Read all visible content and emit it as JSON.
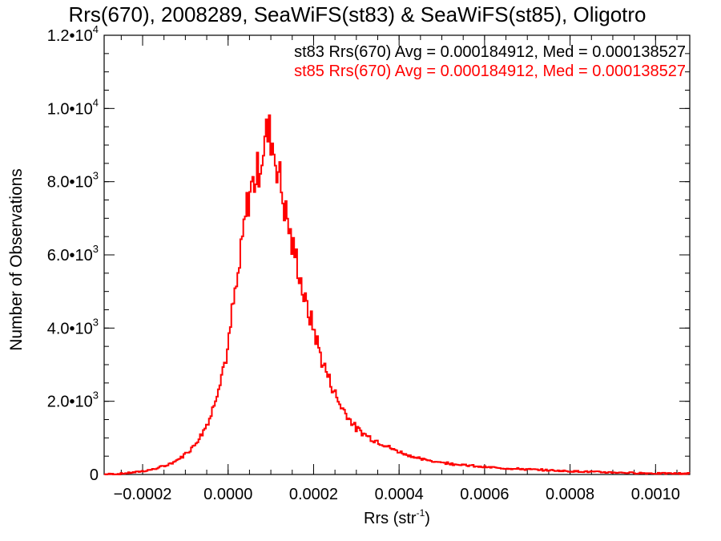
{
  "chart_data": {
    "type": "line",
    "title": "Rrs(670), 2008289, SeaWiFS(st83) & SeaWiFS(st85), Oligotro",
    "xlabel_main": "Rrs (str",
    "xlabel_sup": "-1",
    "xlabel_close": ")",
    "ylabel": "Number of Observations",
    "xlim": [
      -0.00029,
      0.00108
    ],
    "ylim": [
      0,
      12000
    ],
    "x_ticks": [
      {
        "value": -0.0002,
        "label": "−0.0002"
      },
      {
        "value": 0.0,
        "label": "0.0000"
      },
      {
        "value": 0.0002,
        "label": "0.0002"
      },
      {
        "value": 0.0004,
        "label": "0.0004"
      },
      {
        "value": 0.0006,
        "label": "0.0006"
      },
      {
        "value": 0.0008,
        "label": "0.0008"
      },
      {
        "value": 0.001,
        "label": "0.0010"
      }
    ],
    "y_ticks": [
      {
        "value": 0,
        "mant": "0",
        "exp": ""
      },
      {
        "value": 2000,
        "mant": "2.0•10",
        "exp": "3"
      },
      {
        "value": 4000,
        "mant": "4.0•10",
        "exp": "3"
      },
      {
        "value": 6000,
        "mant": "6.0•10",
        "exp": "3"
      },
      {
        "value": 8000,
        "mant": "8.0•10",
        "exp": "3"
      },
      {
        "value": 10000,
        "mant": "1.0•10",
        "exp": "4"
      },
      {
        "value": 12000,
        "mant": "1.2•10",
        "exp": "4"
      }
    ],
    "annotations": [
      {
        "text": "st83 Rrs(670) Avg = 0.000184912, Med = 0.000138527",
        "color": "#000000"
      },
      {
        "text": "st85 Rrs(670) Avg = 0.000184912, Med = 0.000138527",
        "color": "#ff0000"
      }
    ],
    "series": [
      {
        "color": "#ff0000",
        "x": [
          -0.00029,
          -0.00025,
          -0.00022,
          -0.0002,
          -0.00018,
          -0.00016,
          -0.00014,
          -0.00012,
          -0.0001,
          -8e-05,
          -6e-05,
          -4e-05,
          -2e-05,
          0.0,
          1e-05,
          2e-05,
          3e-05,
          4e-05,
          5e-05,
          6e-05,
          7e-05,
          8e-05,
          9e-05,
          0.0001,
          0.00011,
          0.00012,
          0.00013,
          0.00014,
          0.00015,
          0.00016,
          0.00018,
          0.0002,
          0.00022,
          0.00024,
          0.00026,
          0.00028,
          0.0003,
          0.00032,
          0.00034,
          0.00036,
          0.00038,
          0.0004,
          0.00045,
          0.0005,
          0.00055,
          0.0006,
          0.0007,
          0.0008,
          0.0009,
          0.001,
          0.00108
        ],
        "y": [
          5,
          20,
          60,
          90,
          130,
          190,
          270,
          380,
          560,
          780,
          1150,
          1600,
          2550,
          3400,
          4500,
          5100,
          6000,
          7000,
          7700,
          8000,
          8300,
          8800,
          9300,
          9300,
          8700,
          8200,
          7400,
          6900,
          6200,
          5900,
          4700,
          4000,
          3100,
          2500,
          1950,
          1600,
          1250,
          1100,
          950,
          850,
          720,
          620,
          420,
          330,
          260,
          200,
          140,
          90,
          55,
          30,
          25
        ]
      }
    ]
  }
}
